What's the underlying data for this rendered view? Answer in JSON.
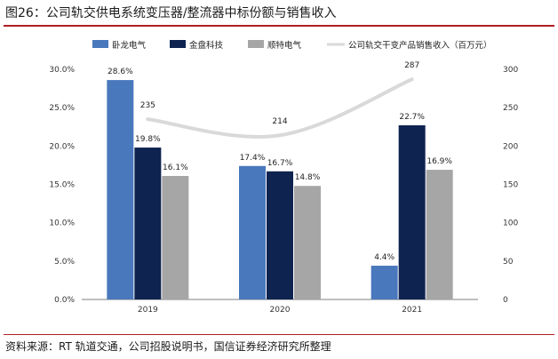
{
  "figure": {
    "title": "图26：公司轨交供电系统变压器/整流器中标份额与销售收入",
    "source": "资料来源：RT 轨道交通，公司招股说明书，国信证券经济研究所整理"
  },
  "chart_data": {
    "type": "bar",
    "categories": [
      "2019",
      "2020",
      "2021"
    ],
    "series": [
      {
        "name": "卧龙电气",
        "type": "bar",
        "axis": "left",
        "color": "#4a78bd",
        "values": [
          28.6,
          17.4,
          4.4
        ],
        "labels": [
          "28.6%",
          "17.4%",
          "4.4%"
        ]
      },
      {
        "name": "金盘科技",
        "type": "bar",
        "axis": "left",
        "color": "#0e2350",
        "values": [
          19.8,
          16.7,
          22.7
        ],
        "labels": [
          "19.8%",
          "16.7%",
          "22.7%"
        ]
      },
      {
        "name": "顺特电气",
        "type": "bar",
        "axis": "left",
        "color": "#a6a6a6",
        "values": [
          16.1,
          14.8,
          16.9
        ],
        "labels": [
          "16.1%",
          "14.8%",
          "16.9%"
        ]
      },
      {
        "name": "公司轨交干变产品销售收入（百万元）",
        "type": "line",
        "axis": "right",
        "color": "#d9d9d9",
        "values": [
          235,
          214,
          287
        ],
        "labels": [
          "235",
          "214",
          "287"
        ]
      }
    ],
    "y_left": {
      "min": 0,
      "max": 30,
      "step": 5,
      "ticks": [
        "0.0%",
        "5.0%",
        "10.0%",
        "15.0%",
        "20.0%",
        "25.0%",
        "30.0%"
      ]
    },
    "y_right": {
      "min": 0,
      "max": 300,
      "step": 50,
      "ticks": [
        "0",
        "50",
        "100",
        "150",
        "200",
        "250",
        "300"
      ]
    },
    "legend_position": "top",
    "grid": false
  }
}
